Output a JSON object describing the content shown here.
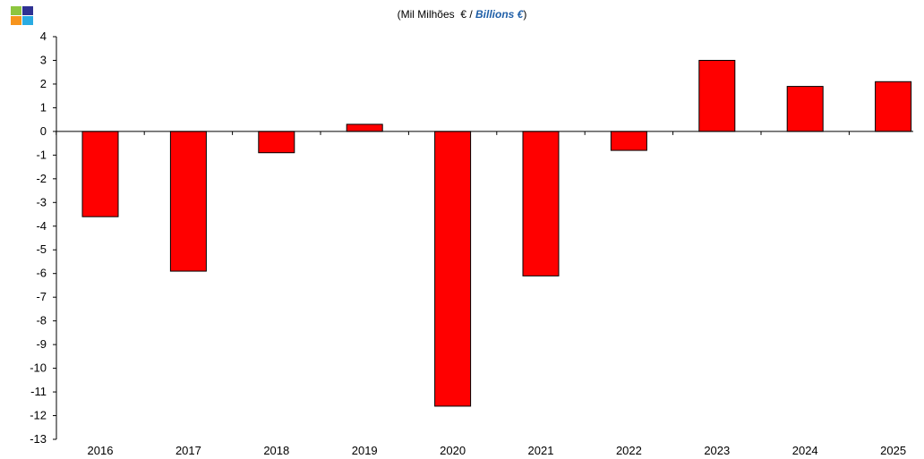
{
  "logo": {
    "colors": [
      "#8dc63f",
      "#2e3192",
      "#f7941d",
      "#29abe2"
    ]
  },
  "subtitle": {
    "prefix": "(Mil Milhões  € / ",
    "english": "Billions €",
    "suffix": ")"
  },
  "chart_data": {
    "type": "bar",
    "categories": [
      "2016",
      "2017",
      "2018",
      "2019",
      "2020",
      "2021",
      "2022",
      "2023",
      "2024",
      "2025"
    ],
    "values": [
      -3.6,
      -5.9,
      -0.9,
      0.3,
      -11.6,
      -6.1,
      -0.8,
      3.0,
      1.9,
      2.1
    ],
    "ylim": [
      -13,
      4
    ],
    "yticks": [
      4,
      3,
      2,
      1,
      0,
      -1,
      -2,
      -3,
      -4,
      -5,
      -6,
      -7,
      -8,
      -9,
      -10,
      -11,
      -12,
      -13
    ],
    "bar_color": "#ff0000",
    "grid": false,
    "legend": "none"
  }
}
